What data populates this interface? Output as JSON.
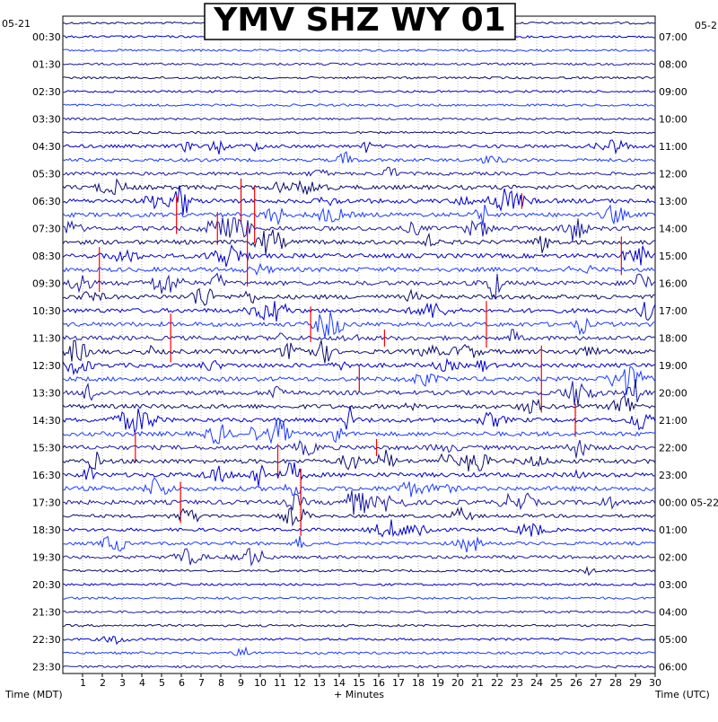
{
  "chart_data": {
    "type": "line",
    "title": "YMV SHZ WY 01",
    "xlabel": "+ Minutes",
    "left_axis_label": "Time (MDT)",
    "right_axis_label": "Time (UTC)",
    "left_date": "05-21",
    "right_date_top": "05-2",
    "right_date_mid": "05-22",
    "xlim": [
      0,
      30
    ],
    "x_ticks": [
      "1",
      "2",
      "3",
      "4",
      "5",
      "6",
      "7",
      "8",
      "9",
      "10",
      "11",
      "12",
      "13",
      "14",
      "15",
      "16",
      "17",
      "18",
      "19",
      "20",
      "21",
      "22",
      "23",
      "24",
      "25",
      "26",
      "27",
      "28",
      "29",
      "30"
    ],
    "row_count": 48,
    "rows_per_hour": 2,
    "left_labels": [
      "00:30",
      "01:30",
      "02:30",
      "03:30",
      "04:30",
      "05:30",
      "06:30",
      "07:30",
      "08:30",
      "09:30",
      "10:30",
      "11:30",
      "12:30",
      "13:30",
      "14:30",
      "15:30",
      "16:30",
      "17:30",
      "18:30",
      "19:30",
      "20:30",
      "21:30",
      "22:30",
      "23:30"
    ],
    "right_labels": [
      "07:00",
      "08:00",
      "09:00",
      "10:00",
      "11:00",
      "12:00",
      "13:00",
      "14:00",
      "15:00",
      "16:00",
      "17:00",
      "18:00",
      "19:00",
      "20:00",
      "21:00",
      "22:00",
      "23:00",
      "00:00 05-22",
      "01:00",
      "02:00",
      "03:00",
      "04:00",
      "05:00",
      "06:00"
    ],
    "trace_colors": [
      "#0d0d6b",
      "#0000c8",
      "#1e3cff",
      "#1a1aa0"
    ],
    "clip_color": "#ff0000",
    "grid": true
  }
}
